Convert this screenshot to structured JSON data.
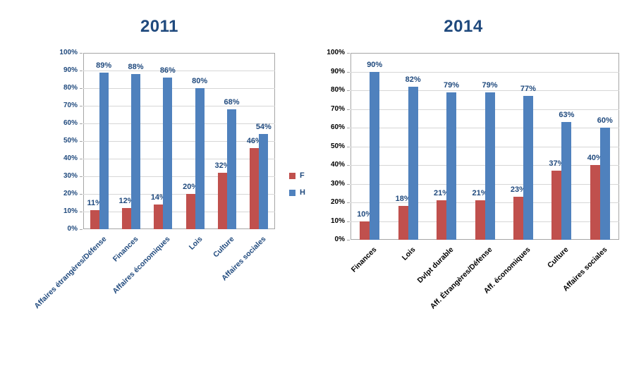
{
  "colors": {
    "title": "#1F497D",
    "data_label": "#1F497D",
    "axis_label_2011": "#1F497D",
    "axis_label_2014": "#000000",
    "legend_label": "#1F497D",
    "f_series": "#C0504D",
    "h_series": "#4F81BD",
    "gridline": "#D6D6D6",
    "plot_border": "#A6A6A6"
  },
  "chart_data": [
    {
      "type": "bar",
      "title": "2011",
      "categories": [
        "Affaires étrangères/Défense",
        "Finances",
        "Affaires économiques",
        "Lois",
        "Culture",
        "Affaires sociales"
      ],
      "series": [
        {
          "name": "F",
          "color": "#C0504D",
          "values": [
            11,
            12,
            14,
            20,
            32,
            46
          ]
        },
        {
          "name": "H",
          "color": "#4F81BD",
          "values": [
            89,
            88,
            86,
            80,
            68,
            54
          ]
        }
      ],
      "ylim": [
        0,
        100
      ],
      "ytick_step": 10,
      "ytick_labels": [
        "0%",
        "10%",
        "20%",
        "30%",
        "40%",
        "50%",
        "60%",
        "70%",
        "80%",
        "90%",
        "100%"
      ],
      "data_label_suffix": "%",
      "grid": true,
      "legend": {
        "show": true,
        "position": "right",
        "entries": [
          "F",
          "H"
        ]
      }
    },
    {
      "type": "bar",
      "title": "2014",
      "categories": [
        "Finances",
        "Lois",
        "Dvlpt durable",
        "Aff. Étrangères/Défense",
        "Aff. économiques",
        "Culture",
        "Affaires sociales"
      ],
      "series": [
        {
          "name": "F",
          "color": "#C0504D",
          "values": [
            10,
            18,
            21,
            21,
            23,
            37,
            40
          ]
        },
        {
          "name": "H",
          "color": "#4F81BD",
          "values": [
            90,
            82,
            79,
            79,
            77,
            63,
            60
          ]
        }
      ],
      "ylim": [
        0,
        100
      ],
      "ytick_step": 10,
      "ytick_labels": [
        "0%",
        "10%",
        "20%",
        "30%",
        "40%",
        "50%",
        "60%",
        "70%",
        "80%",
        "90%",
        "100%"
      ],
      "data_label_suffix": "%",
      "grid": true,
      "legend": {
        "show": false
      }
    }
  ]
}
